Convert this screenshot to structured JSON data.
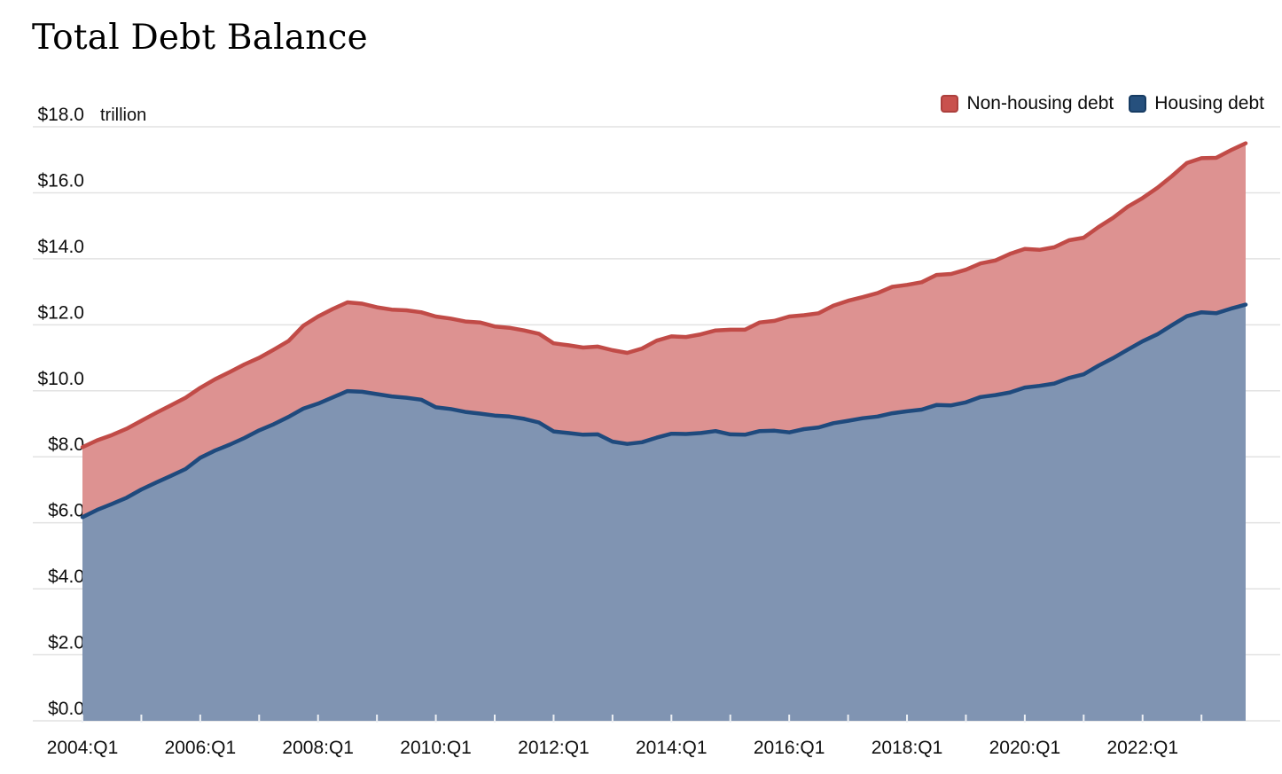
{
  "page": {
    "title": "Total Debt Balance"
  },
  "legend": [
    {
      "label": "Non-housing debt",
      "color": "#c9514d",
      "border": "#ac403d"
    },
    {
      "label": "Housing debt",
      "color": "#26507d",
      "border": "#173c63"
    }
  ],
  "colors": {
    "housing_fill": "#8094b2",
    "housing_line": "#1f4a7d",
    "non_housing_fill": "#dd9291",
    "non_housing_line": "#c14b47",
    "grid": "#e2e2e2",
    "tick_slit": "#edf0f4",
    "text": "#0f0f0f"
  },
  "chart_data": {
    "type": "area",
    "stacked": true,
    "title": "Total Debt Balance",
    "unit_label": "trillion",
    "ylim": [
      0,
      18
    ],
    "y_ticks": {
      "values": [
        0,
        2,
        4,
        6,
        8,
        10,
        12,
        14,
        16,
        18
      ],
      "labels": [
        "$0.0",
        "$2.0",
        "$4.0",
        "$6.0",
        "$8.0",
        "$10.0",
        "$12.0",
        "$14.0",
        "$16.0",
        "$18.0"
      ]
    },
    "x_tick_labels": [
      "2004:Q1",
      "2006:Q1",
      "2008:Q1",
      "2010:Q1",
      "2012:Q1",
      "2014:Q1",
      "2016:Q1",
      "2018:Q1",
      "2020:Q1",
      "2022:Q1"
    ],
    "x_tick_every_quarters": 8,
    "year_tick_every_quarters": 4,
    "grid": true,
    "legend_position": "top-right",
    "categories": [
      "2004:Q1",
      "2004:Q2",
      "2004:Q3",
      "2004:Q4",
      "2005:Q1",
      "2005:Q2",
      "2005:Q3",
      "2005:Q4",
      "2006:Q1",
      "2006:Q2",
      "2006:Q3",
      "2006:Q4",
      "2007:Q1",
      "2007:Q2",
      "2007:Q3",
      "2007:Q4",
      "2008:Q1",
      "2008:Q2",
      "2008:Q3",
      "2008:Q4",
      "2009:Q1",
      "2009:Q2",
      "2009:Q3",
      "2009:Q4",
      "2010:Q1",
      "2010:Q2",
      "2010:Q3",
      "2010:Q4",
      "2011:Q1",
      "2011:Q2",
      "2011:Q3",
      "2011:Q4",
      "2012:Q1",
      "2012:Q2",
      "2012:Q3",
      "2012:Q4",
      "2013:Q1",
      "2013:Q2",
      "2013:Q3",
      "2013:Q4",
      "2014:Q1",
      "2014:Q2",
      "2014:Q3",
      "2014:Q4",
      "2015:Q1",
      "2015:Q2",
      "2015:Q3",
      "2015:Q4",
      "2016:Q1",
      "2016:Q2",
      "2016:Q3",
      "2016:Q4",
      "2017:Q1",
      "2017:Q2",
      "2017:Q3",
      "2017:Q4",
      "2018:Q1",
      "2018:Q2",
      "2018:Q3",
      "2018:Q4",
      "2019:Q1",
      "2019:Q2",
      "2019:Q3",
      "2019:Q4",
      "2020:Q1",
      "2020:Q2",
      "2020:Q3",
      "2020:Q4",
      "2021:Q1",
      "2021:Q2",
      "2021:Q3",
      "2021:Q4",
      "2022:Q1",
      "2022:Q2",
      "2022:Q3",
      "2022:Q4",
      "2023:Q1",
      "2023:Q2",
      "2023:Q3",
      "2023:Q4"
    ],
    "series": [
      {
        "name": "Housing debt",
        "values": [
          6.17,
          6.39,
          6.57,
          6.76,
          7.01,
          7.22,
          7.42,
          7.63,
          7.97,
          8.19,
          8.37,
          8.57,
          8.8,
          8.99,
          9.21,
          9.46,
          9.61,
          9.8,
          9.99,
          9.97,
          9.9,
          9.83,
          9.79,
          9.73,
          9.5,
          9.45,
          9.36,
          9.31,
          9.25,
          9.22,
          9.15,
          9.04,
          8.77,
          8.72,
          8.67,
          8.68,
          8.46,
          8.39,
          8.44,
          8.58,
          8.7,
          8.69,
          8.72,
          8.78,
          8.68,
          8.67,
          8.78,
          8.79,
          8.74,
          8.84,
          8.89,
          9.02,
          9.09,
          9.17,
          9.22,
          9.32,
          9.38,
          9.43,
          9.57,
          9.56,
          9.65,
          9.81,
          9.87,
          9.95,
          10.1,
          10.15,
          10.22,
          10.39,
          10.5,
          10.76,
          10.99,
          11.25,
          11.5,
          11.71,
          11.99,
          12.26,
          12.38,
          12.35,
          12.49,
          12.61
        ]
      },
      {
        "name": "Non-housing debt",
        "values": [
          2.12,
          2.11,
          2.09,
          2.09,
          2.08,
          2.11,
          2.14,
          2.16,
          2.12,
          2.16,
          2.2,
          2.23,
          2.2,
          2.26,
          2.3,
          2.51,
          2.64,
          2.68,
          2.69,
          2.67,
          2.63,
          2.63,
          2.65,
          2.65,
          2.75,
          2.74,
          2.74,
          2.76,
          2.7,
          2.69,
          2.68,
          2.69,
          2.67,
          2.66,
          2.64,
          2.66,
          2.77,
          2.76,
          2.84,
          2.94,
          2.95,
          2.94,
          2.99,
          3.05,
          3.17,
          3.18,
          3.29,
          3.33,
          3.51,
          3.45,
          3.46,
          3.56,
          3.64,
          3.67,
          3.74,
          3.83,
          3.83,
          3.86,
          3.94,
          3.98,
          4.02,
          4.05,
          4.08,
          4.2,
          4.2,
          4.12,
          4.13,
          4.17,
          4.14,
          4.2,
          4.25,
          4.33,
          4.34,
          4.44,
          4.52,
          4.64,
          4.67,
          4.71,
          4.8,
          4.89
        ]
      }
    ]
  }
}
